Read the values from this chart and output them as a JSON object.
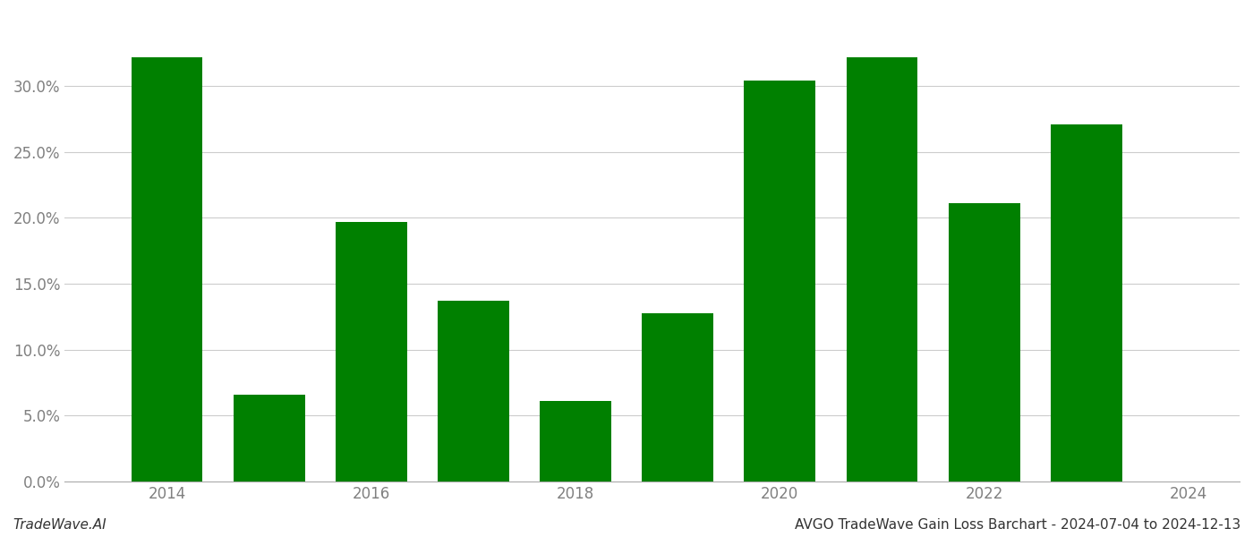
{
  "years": [
    2014,
    2015,
    2016,
    2017,
    2018,
    2019,
    2020,
    2021,
    2022,
    2023
  ],
  "values": [
    0.322,
    0.066,
    0.197,
    0.137,
    0.061,
    0.128,
    0.304,
    0.322,
    0.211,
    0.271
  ],
  "bar_color": "#008000",
  "background_color": "#ffffff",
  "footer_left": "TradeWave.AI",
  "footer_right": "AVGO TradeWave Gain Loss Barchart - 2024-07-04 to 2024-12-13",
  "ylim": [
    0,
    0.355
  ],
  "ytick_values": [
    0.0,
    0.05,
    0.1,
    0.15,
    0.2,
    0.25,
    0.3
  ],
  "xtick_values": [
    2014,
    2016,
    2018,
    2020,
    2022,
    2024
  ],
  "grid_color": "#cccccc",
  "tick_label_color": "#808080",
  "footer_font_size": 11,
  "bar_width": 0.7,
  "xlim": [
    2013.0,
    2024.5
  ]
}
